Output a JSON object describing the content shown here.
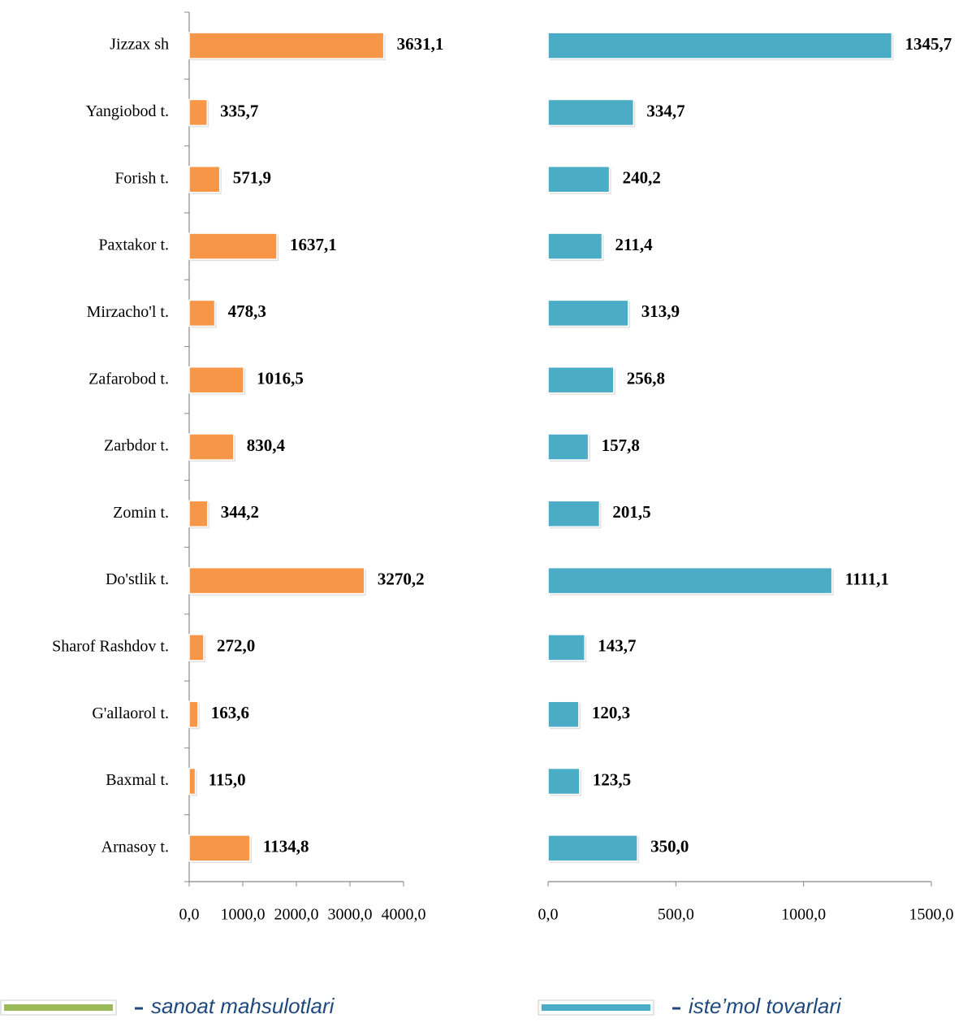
{
  "chart_data": [
    {
      "type": "bar",
      "categories": [
        "Jizzax sh",
        "Yangiobod t.",
        "Forish t.",
        "Paxtakor t.",
        "Mirzacho'l t.",
        "Zafarobod t.",
        "Zarbdor t.",
        "Zomin t.",
        "Do'stlik t.",
        "Sharof Rashdov  t.",
        "G'allaorol t.",
        "Baxmal t.",
        "Arnasoy t."
      ],
      "series": [
        {
          "name": "sanoat mahsulotlari",
          "color": "#f79646",
          "legend_color": "#9bbb59",
          "values": [
            3631.1,
            335.7,
            571.9,
            1637.1,
            478.3,
            1016.5,
            830.4,
            344.2,
            3270.2,
            272.0,
            163.6,
            115.0,
            1134.8
          ],
          "value_labels": [
            "3631,1",
            "335,7",
            "571,9",
            "1637,1",
            "478,3",
            "1016,5",
            "830,4",
            "344,2",
            "3270,2",
            "272,0",
            "163,6",
            "115,0",
            "1134,8"
          ]
        }
      ],
      "xlim": [
        0,
        4000
      ],
      "xticks": [
        {
          "value": 0,
          "label": "0,0"
        },
        {
          "value": 1000,
          "label": "1000,0"
        },
        {
          "value": 2000,
          "label": "2000,0"
        },
        {
          "value": 3000,
          "label": "3000,0"
        },
        {
          "value": 4000,
          "label": "4000,0"
        }
      ]
    },
    {
      "type": "bar",
      "series": [
        {
          "name": "iste’mol tovarlari",
          "color": "#4bacc6",
          "legend_color": "#4bacc6",
          "values": [
            1345.7,
            334.7,
            240.2,
            211.4,
            313.9,
            256.8,
            157.8,
            201.5,
            1111.1,
            143.7,
            120.3,
            123.5,
            350.0
          ],
          "value_labels": [
            "1345,7",
            "334,7",
            "240,2",
            "211,4",
            "313,9",
            "256,8",
            "157,8",
            "201,5",
            "1111,1",
            "143,7",
            "120,3",
            "123,5",
            "350,0"
          ]
        }
      ],
      "xlim": [
        0,
        1500
      ],
      "xticks": [
        {
          "value": 0,
          "label": "0,0"
        },
        {
          "value": 500,
          "label": "500,0"
        },
        {
          "value": 1000,
          "label": "1000,0"
        },
        {
          "value": 1500,
          "label": "1500,0"
        }
      ]
    }
  ]
}
